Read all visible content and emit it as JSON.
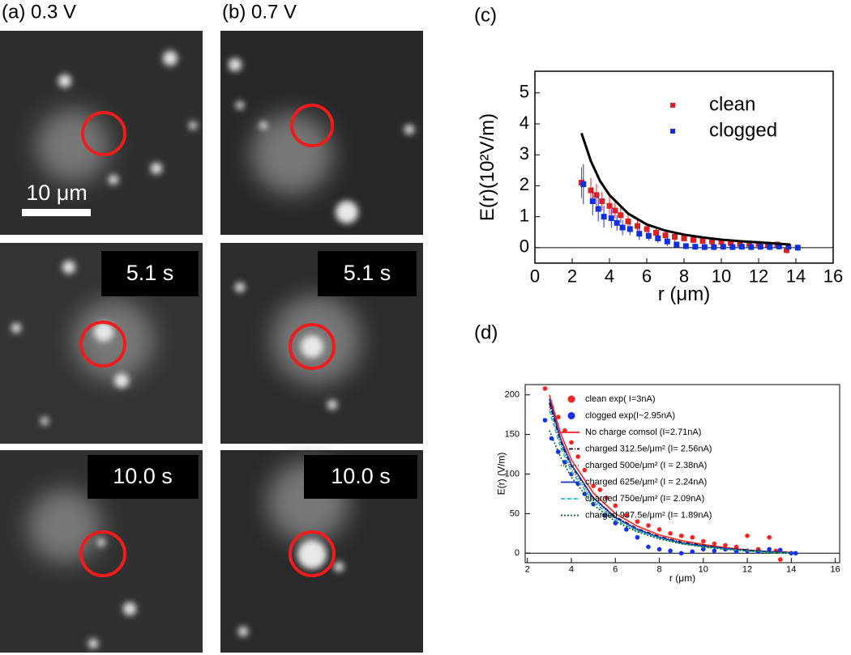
{
  "figure": {
    "panel_labels": [
      "(a) 0.3 V",
      "(b) 0.7 V",
      "(c)",
      "(d)"
    ],
    "scale_bar": "10 μm",
    "timestamps": [
      "5.1 s",
      "10.0 s"
    ]
  },
  "chart_data": [
    {
      "type": "scatter",
      "xlabel": "r (μm)",
      "ylabel": "E(r)(10²V/m)",
      "xlim": [
        0,
        16
      ],
      "ylim": [
        -0.5,
        5.7
      ],
      "xticks": [
        0,
        2,
        4,
        6,
        8,
        10,
        12,
        14,
        16
      ],
      "yticks": [
        0,
        1,
        2,
        3,
        4,
        5
      ],
      "series": [
        {
          "name": "clean",
          "color": "#e02020",
          "marker": "square",
          "x": [
            2.5,
            3,
            3.3,
            3.6,
            4,
            4.3,
            4.6,
            5,
            5.5,
            6,
            6.5,
            7,
            7.5,
            8,
            8.5,
            9,
            9.5,
            10,
            10.5,
            11,
            11.5,
            12,
            12.5,
            13,
            13.5
          ],
          "values": [
            2.1,
            1.85,
            1.7,
            1.5,
            1.35,
            1.2,
            1.05,
            0.85,
            0.7,
            0.6,
            0.48,
            0.4,
            0.35,
            0.3,
            0.25,
            0.22,
            0.2,
            0.18,
            0.15,
            0.12,
            0.12,
            0.12,
            0.1,
            0.1,
            -0.08
          ],
          "errors": [
            0.5,
            0.4,
            0.35,
            0.3,
            0.3,
            0.25,
            0.25,
            0.2,
            0.2,
            0.2,
            0.15,
            0.15,
            0.15,
            0.1,
            0.1,
            0.1,
            0.1,
            0.1,
            0.1,
            0.1,
            0.1,
            0.1,
            0.1,
            0.1,
            0.1
          ]
        },
        {
          "name": "clogged",
          "color": "#1030e0",
          "marker": "square",
          "x": [
            2.6,
            3.1,
            3.4,
            3.7,
            4.1,
            4.4,
            4.7,
            5.1,
            5.6,
            6.1,
            6.6,
            7.1,
            7.6,
            8.1,
            8.6,
            9.1,
            9.6,
            10.1,
            10.6,
            11.1,
            11.6,
            12.1,
            12.6,
            13.1,
            13.6,
            14.1
          ],
          "values": [
            2.05,
            1.5,
            1.25,
            1.0,
            0.95,
            0.8,
            0.65,
            0.6,
            0.45,
            0.38,
            0.3,
            0.2,
            0.1,
            0.05,
            0.03,
            0.02,
            0.02,
            0.03,
            0.02,
            0.03,
            0.02,
            0.03,
            0.02,
            0.04,
            0.03,
            0.0
          ],
          "errors": [
            0.65,
            0.45,
            0.4,
            0.35,
            0.3,
            0.25,
            0.25,
            0.2,
            0.2,
            0.15,
            0.15,
            0.15,
            0.1,
            0.1,
            0.1,
            0.1,
            0.1,
            0.1,
            0.1,
            0.1,
            0.1,
            0.1,
            0.1,
            0.1,
            0.1,
            0.1
          ]
        },
        {
          "color": "#000000",
          "marker": "none",
          "width": 3,
          "x": [
            2.5,
            3,
            3.5,
            4,
            5,
            6,
            7,
            8,
            9,
            10,
            11,
            12,
            13,
            13.7
          ],
          "values": [
            3.7,
            2.8,
            2.15,
            1.7,
            1.1,
            0.75,
            0.55,
            0.42,
            0.33,
            0.26,
            0.21,
            0.17,
            0.13,
            0.1
          ]
        }
      ]
    },
    {
      "type": "scatter",
      "xlabel": "r (μm)",
      "ylabel": "E(r) (V/m)",
      "xlim": [
        1.9,
        16.2
      ],
      "ylim": [
        -12,
        213
      ],
      "xticks": [
        2,
        4,
        6,
        8,
        10,
        12,
        14,
        16
      ],
      "yticks": [
        0,
        50,
        100,
        150,
        200
      ],
      "series": [
        {
          "name": "clean exp( I=3nA)",
          "color": "#ff2020",
          "marker": "circle",
          "x": [
            2.8,
            3.1,
            3.4,
            3.7,
            4.0,
            4.3,
            4.6,
            5.0,
            5.3,
            5.6,
            6,
            6.5,
            7,
            7.5,
            8,
            8.5,
            9,
            9.5,
            10,
            10.5,
            11,
            11.5,
            12,
            12.5,
            13,
            13.3,
            13.5
          ],
          "values": [
            208,
            185,
            172,
            155,
            140,
            122,
            105,
            85,
            80,
            70,
            60,
            48,
            40,
            35,
            30,
            25,
            22,
            20,
            15,
            12,
            10,
            8,
            22,
            5,
            20,
            3,
            -8
          ]
        },
        {
          "name": "clogged exp(I~2.95nA)",
          "color": "#1030ff",
          "marker": "circle",
          "x": [
            2.8,
            3.1,
            3.4,
            3.7,
            4,
            4.3,
            4.6,
            5,
            5.5,
            6,
            6.5,
            7,
            7.5,
            8,
            8.5,
            9,
            9.5,
            10,
            10.5,
            11,
            11.5,
            12,
            12.5,
            13,
            13.5,
            14,
            14.2
          ],
          "values": [
            168,
            145,
            128,
            115,
            100,
            88,
            75,
            62,
            48,
            38,
            30,
            20,
            8,
            5,
            3,
            0,
            2,
            5,
            3,
            5,
            2,
            3,
            2,
            5,
            4,
            0,
            0
          ]
        },
        {
          "name": "No charge comsol (I=2.71nA)",
          "color": "#ff2020",
          "marker": "none",
          "dash": "none",
          "x": [
            3,
            3.5,
            4,
            5,
            6,
            7,
            8,
            9,
            10,
            11,
            12,
            13,
            14
          ],
          "values": [
            200,
            152,
            118,
            76,
            50,
            34,
            23,
            16,
            11,
            7,
            4,
            2,
            1
          ]
        },
        {
          "name": "charged 312.5e/μm² (I= 2.56nA)",
          "color": "#000000",
          "marker": "none",
          "dash": "5 2 1 2",
          "x": [
            3,
            3.5,
            4,
            5,
            6,
            7,
            8,
            9,
            10,
            11,
            12,
            13,
            14
          ],
          "values": [
            190,
            142,
            110,
            70,
            46,
            31,
            21,
            14,
            10,
            6,
            4,
            2,
            1
          ]
        },
        {
          "name": "charged 500e/μm² (I = 2.38nA)",
          "color": "#555555",
          "marker": "none",
          "dash": "1 2",
          "x": [
            3,
            3.5,
            4,
            5,
            6,
            7,
            8,
            9,
            10,
            11,
            12,
            13,
            14
          ],
          "values": [
            185,
            138,
            106,
            67,
            44,
            29,
            20,
            13,
            9,
            6,
            3,
            2,
            1
          ]
        },
        {
          "name": "charged 625e/μm² (I = 2.24nA)",
          "color": "#1030c0",
          "marker": "none",
          "dash": "none",
          "x": [
            3,
            3.5,
            4,
            5,
            6,
            7,
            8,
            9,
            10,
            11,
            12,
            13,
            14
          ],
          "values": [
            195,
            145,
            112,
            70,
            45,
            30,
            20,
            13,
            9,
            6,
            3,
            2,
            0
          ]
        },
        {
          "name": "charged 750e/μm² (I= 2.09nA)",
          "color": "#20c0d0",
          "marker": "none",
          "dash": "5 3",
          "x": [
            3,
            3.5,
            4,
            5,
            6,
            7,
            8,
            9,
            10,
            11,
            12,
            13,
            14
          ],
          "values": [
            180,
            134,
            103,
            65,
            42,
            28,
            19,
            12,
            8,
            5,
            3,
            1,
            0
          ]
        },
        {
          "name": "charged 937.5e/μm² (I= 1.89nA)",
          "color": "#106020",
          "marker": "none",
          "dash": "2 2",
          "x": [
            3,
            3.5,
            4,
            5,
            6,
            7,
            8,
            9,
            10,
            11,
            12,
            13,
            14
          ],
          "values": [
            155,
            122,
            96,
            61,
            40,
            27,
            18,
            12,
            8,
            5,
            3,
            1,
            0
          ]
        }
      ]
    }
  ]
}
